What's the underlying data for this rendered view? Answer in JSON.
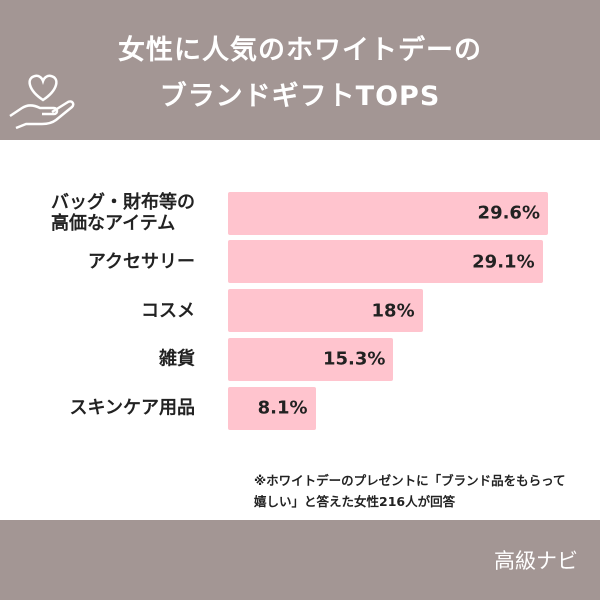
{
  "chart_data": {
    "type": "bar",
    "orientation": "horizontal",
    "title": "女性に人気のホワイトデーの\nブランドギフトTOPS",
    "categories": [
      "バッグ・財布等の\n高価なアイテム",
      "アクセサリー",
      "コスメ",
      "雑貨",
      "スキンケア用品"
    ],
    "values": [
      29.6,
      29.1,
      18,
      15.3,
      8.1
    ],
    "value_labels": [
      "29.6%",
      "29.1%",
      "18%",
      "15.3%",
      "8.1%"
    ],
    "color": "#ffc4ce",
    "note": "※ホワイトデーのプレゼントに「ブランド品をもらって\n嬉しい」と答えた女性216人が回答",
    "source": "高級ナビ"
  }
}
